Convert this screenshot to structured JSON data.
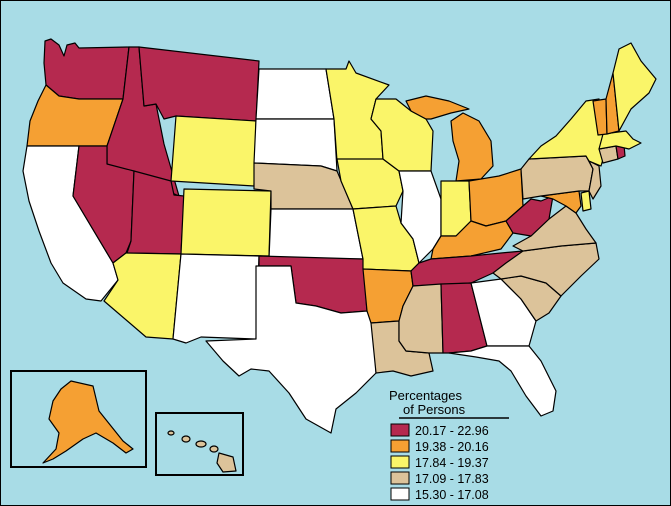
{
  "legend": {
    "title_line1": "Percentages",
    "title_line2": "of Persons",
    "classes": [
      {
        "label": "20.17 - 22.96",
        "color": "#b5294f"
      },
      {
        "label": "19.38 - 20.16",
        "color": "#f5a033"
      },
      {
        "label": "17.84 - 19.37",
        "color": "#faf569"
      },
      {
        "label": "17.09 - 17.83",
        "color": "#dcc39a"
      },
      {
        "label": "15.30 - 17.08",
        "color": "#ffffff"
      }
    ]
  },
  "colors": {
    "water": "#a8dce6",
    "border": "#000000"
  },
  "states": {
    "WA": "20.17 - 22.96",
    "OR": "19.38 - 20.16",
    "CA": "15.30 - 17.08",
    "ID": "20.17 - 22.96",
    "NV": "20.17 - 22.96",
    "MT": "20.17 - 22.96",
    "WY": "17.84 - 19.37",
    "UT": "20.17 - 22.96",
    "AZ": "17.84 - 19.37",
    "CO": "17.84 - 19.37",
    "NM": "15.30 - 17.08",
    "ND": "15.30 - 17.08",
    "SD": "15.30 - 17.08",
    "NE": "17.09 - 17.83",
    "KS": "15.30 - 17.08",
    "OK": "20.17 - 22.96",
    "TX": "15.30 - 17.08",
    "MN": "17.84 - 19.37",
    "IA": "17.84 - 19.37",
    "MO": "17.84 - 19.37",
    "AR": "19.38 - 20.16",
    "LA": "17.09 - 17.83",
    "WI": "17.84 - 19.37",
    "IL": "15.30 - 17.08",
    "MI": "19.38 - 20.16",
    "IN": "17.84 - 19.37",
    "OH": "19.38 - 20.16",
    "KY": "19.38 - 20.16",
    "TN": "20.17 - 22.96",
    "MS": "17.09 - 17.83",
    "AL": "20.17 - 22.96",
    "GA": "15.30 - 17.08",
    "FL": "15.30 - 17.08",
    "SC": "17.09 - 17.83",
    "NC": "17.09 - 17.83",
    "VA": "17.09 - 17.83",
    "WV": "20.17 - 22.96",
    "MD": "19.38 - 20.16",
    "DE": "17.84 - 19.37",
    "NJ": "17.09 - 17.83",
    "PA": "17.09 - 17.83",
    "NY": "17.84 - 19.37",
    "CT": "17.09 - 17.83",
    "RI": "20.17 - 22.96",
    "MA": "17.84 - 19.37",
    "VT": "19.38 - 20.16",
    "NH": "19.38 - 20.16",
    "ME": "17.84 - 19.37",
    "AK": "19.38 - 20.16",
    "HI": "17.09 - 17.83"
  }
}
